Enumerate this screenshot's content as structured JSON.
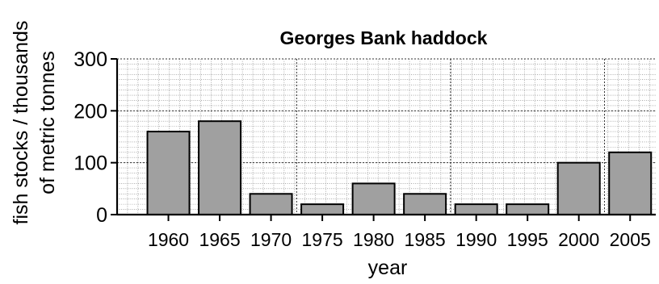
{
  "chart_data": {
    "type": "bar",
    "title": "Georges Bank haddock",
    "xlabel": "year",
    "ylabel_line1": "fish stocks / thousands",
    "ylabel_line2": "of metric tonnes",
    "categories": [
      "1960",
      "1965",
      "1970",
      "1975",
      "1980",
      "1985",
      "1990",
      "1995",
      "2000",
      "2005"
    ],
    "values": [
      160,
      180,
      40,
      20,
      60,
      40,
      20,
      20,
      100,
      120
    ],
    "ylim": [
      0,
      300
    ],
    "yticks": [
      0,
      100,
      200,
      300
    ],
    "ytick_labels": [
      "0",
      "100",
      "200",
      "300"
    ],
    "grid": true,
    "bar_color": "#a0a0a0"
  }
}
